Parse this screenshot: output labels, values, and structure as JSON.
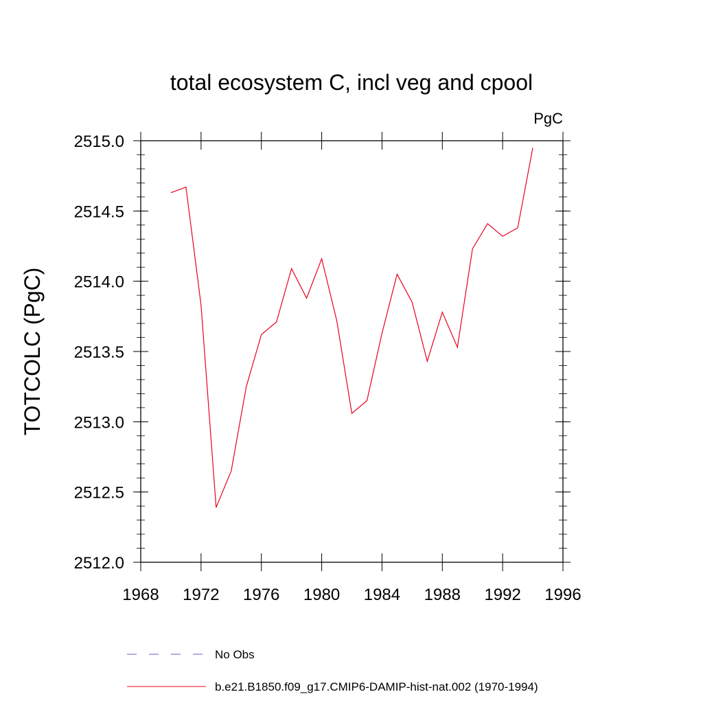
{
  "chart_data": {
    "type": "line",
    "title": "total ecosystem C, incl veg and cpool",
    "units": "PgC",
    "ylabel": "TOTCOLC  (PgC)",
    "xlabel": "",
    "xlim": [
      1968,
      1996
    ],
    "ylim": [
      2512.0,
      2515.0
    ],
    "x_ticks": [
      1968,
      1972,
      1976,
      1980,
      1984,
      1988,
      1992,
      1996
    ],
    "y_ticks": [
      2512.0,
      2512.5,
      2513.0,
      2513.5,
      2514.0,
      2514.5,
      2515.0
    ],
    "x_tick_labels": [
      "1968",
      "1972",
      "1976",
      "1980",
      "1984",
      "1988",
      "1992",
      "1996"
    ],
    "y_tick_labels": [
      "2512.0",
      "2512.5",
      "2513.0",
      "2513.5",
      "2514.0",
      "2514.5",
      "2515.0"
    ],
    "x": [
      1970,
      1971,
      1972,
      1973,
      1974,
      1975,
      1976,
      1977,
      1978,
      1979,
      1980,
      1981,
      1982,
      1983,
      1984,
      1985,
      1986,
      1987,
      1988,
      1989,
      1990,
      1991,
      1992,
      1993,
      1994
    ],
    "series": [
      {
        "name": "b.e21.B1850.f09_g17.CMIP6-DAMIP-hist-nat.002 (1970-1994)",
        "color": "#e8001c",
        "style": "solid",
        "values": [
          2514.63,
          2514.67,
          2513.83,
          2512.39,
          2512.65,
          2513.25,
          2513.62,
          2513.71,
          2514.09,
          2513.88,
          2514.16,
          2513.72,
          2513.06,
          2513.15,
          2513.63,
          2514.05,
          2513.85,
          2513.43,
          2513.78,
          2513.53,
          2514.23,
          2514.41,
          2514.32,
          2514.38,
          2514.95
        ]
      }
    ],
    "legend": {
      "placement": "bottom",
      "entries": [
        {
          "label": "No Obs",
          "color": "#6a5acd",
          "style": "dashed"
        },
        {
          "label": "b.e21.B1850.f09_g17.CMIP6-DAMIP-hist-nat.002 (1970-1994)",
          "color": "#e8001c",
          "style": "solid"
        }
      ]
    },
    "grid": false
  }
}
